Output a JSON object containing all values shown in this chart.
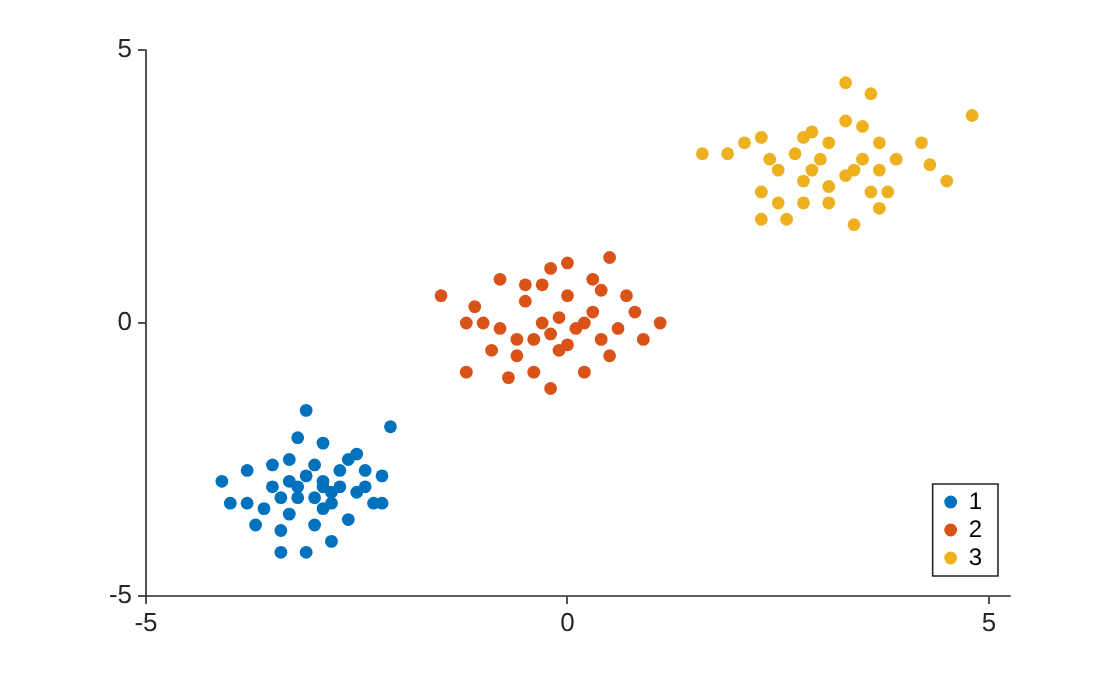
{
  "chart_data": {
    "type": "scatter",
    "xlim": [
      -5,
      5.25
    ],
    "xticks": [
      -5,
      0,
      5
    ],
    "ylim": [
      -5,
      5
    ],
    "yticks": [
      -5,
      0,
      5
    ],
    "grid": false,
    "legend": "bottom right",
    "marker": "circle",
    "series": [
      {
        "name": "1",
        "color": "#0072bd",
        "x": [
          -3.1,
          -2.1,
          -4.1,
          -3.8,
          -3.5,
          -3.5,
          -3.2,
          -2.9,
          -2.6,
          -2.2,
          -2.3,
          -3.0,
          -3.4,
          -3.1,
          -2.8,
          -3.7,
          -4.0,
          -3.2,
          -3.3,
          -2.7,
          -2.4,
          -2.9,
          -3.0,
          -3.3,
          -2.8,
          -2.6,
          -2.5,
          -3.6,
          -2.9,
          -3.3,
          -2.4,
          -3.4,
          -2.5,
          -3.8,
          -2.2,
          -3.4,
          -3.1,
          -2.9,
          -3.2,
          -2.7,
          -3.0,
          -2.8
        ],
        "values": [
          -1.6,
          -1.9,
          -2.9,
          -2.7,
          -3.0,
          -2.6,
          -2.1,
          -2.2,
          -2.5,
          -2.8,
          -3.3,
          -3.7,
          -4.2,
          -4.2,
          -4.0,
          -3.7,
          -3.3,
          -3.2,
          -2.9,
          -3.0,
          -2.7,
          -2.9,
          -2.6,
          -2.5,
          -3.3,
          -3.6,
          -2.4,
          -3.4,
          -3.4,
          -3.5,
          -3.0,
          -3.8,
          -3.1,
          -3.3,
          -3.3,
          -3.2,
          -2.8,
          -3.0,
          -3.0,
          -2.7,
          -3.2,
          -3.1
        ]
      },
      {
        "name": "2",
        "color": "#d95319",
        "x": [
          -1.5,
          -1.2,
          -0.8,
          -0.2,
          0.5,
          0.0,
          -1.1,
          -1.0,
          -0.6,
          -0.5,
          -0.3,
          0.3,
          0.6,
          0.8,
          1.1,
          0.4,
          -0.2,
          0.2,
          -0.4,
          -0.6,
          -0.1,
          0.1,
          -0.1,
          0.0,
          -0.3,
          -0.8,
          0.9,
          0.5,
          -0.9,
          0.2,
          0.4,
          -0.5,
          0.0,
          -0.4,
          -1.2,
          -0.2,
          0.3,
          0.7,
          -0.7
        ],
        "values": [
          0.5,
          -0.9,
          0.8,
          1.0,
          1.2,
          1.1,
          0.3,
          0.0,
          -0.3,
          0.4,
          0.0,
          0.2,
          -0.1,
          0.2,
          0.0,
          -0.3,
          -1.2,
          -0.9,
          -0.9,
          -0.6,
          -0.5,
          -0.1,
          0.1,
          0.5,
          0.7,
          -0.1,
          -0.3,
          -0.6,
          -0.5,
          0.0,
          0.6,
          0.7,
          -0.4,
          -0.3,
          0.0,
          -0.2,
          0.8,
          0.5,
          -1.0
        ]
      },
      {
        "name": "3",
        "color": "#edb120",
        "x": [
          1.6,
          3.3,
          3.6,
          4.8,
          4.2,
          4.5,
          4.3,
          2.3,
          2.6,
          3.4,
          3.7,
          1.9,
          2.1,
          2.3,
          2.5,
          2.8,
          3.0,
          3.3,
          3.5,
          3.7,
          3.8,
          2.9,
          3.1,
          2.7,
          2.4,
          3.3,
          3.5,
          2.8,
          3.1,
          3.6,
          3.4,
          2.5,
          2.9,
          3.9,
          2.8,
          3.7,
          2.3,
          3.1
        ],
        "values": [
          3.1,
          4.4,
          4.2,
          3.8,
          3.3,
          2.6,
          2.9,
          1.9,
          1.9,
          1.8,
          2.1,
          3.1,
          3.3,
          2.4,
          2.2,
          2.6,
          3.0,
          2.7,
          3.0,
          2.8,
          2.4,
          3.5,
          3.3,
          3.1,
          3.0,
          3.7,
          3.6,
          2.2,
          2.5,
          2.4,
          2.8,
          2.8,
          2.8,
          3.0,
          3.4,
          3.3,
          3.4,
          2.2
        ]
      }
    ]
  }
}
